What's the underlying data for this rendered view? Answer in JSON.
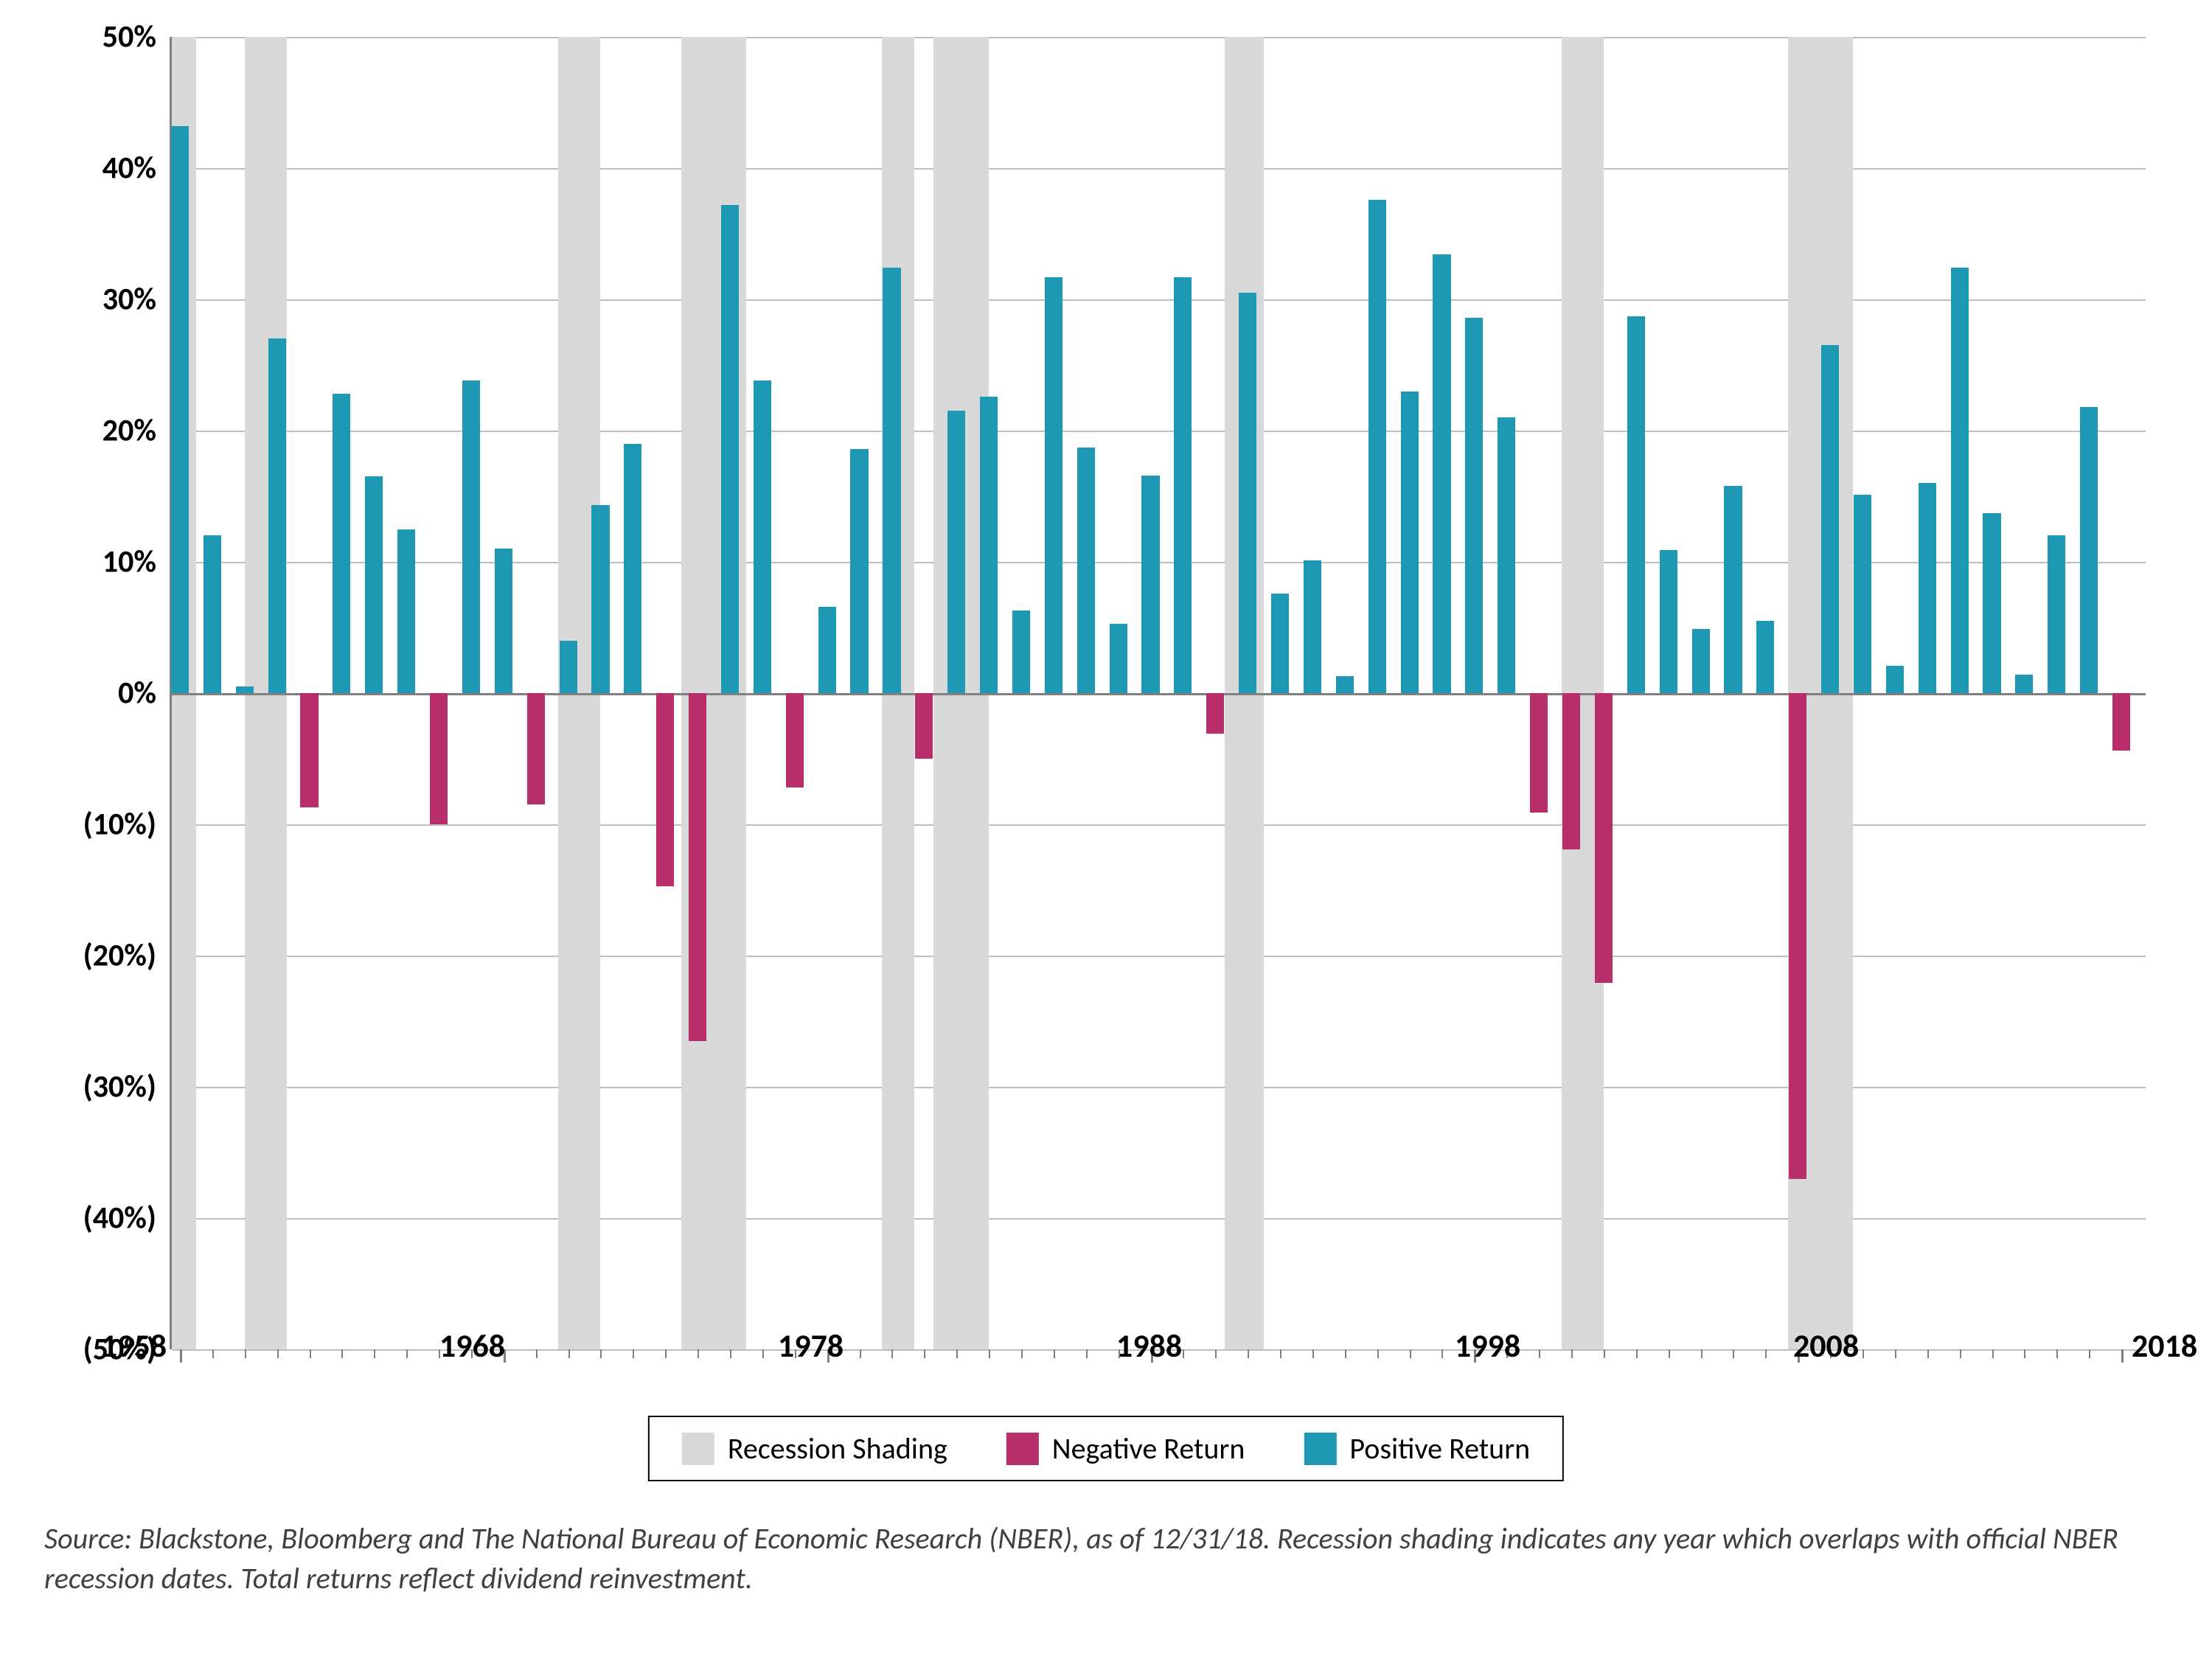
{
  "chart": {
    "type": "bar",
    "ylim": [
      -50,
      50
    ],
    "ytick_step": 10,
    "y_ticks": [
      {
        "v": 50,
        "label": "50%"
      },
      {
        "v": 40,
        "label": "40%"
      },
      {
        "v": 30,
        "label": "30%"
      },
      {
        "v": 20,
        "label": "20%"
      },
      {
        "v": 10,
        "label": "10%"
      },
      {
        "v": 0,
        "label": "0%"
      },
      {
        "v": -10,
        "label": "(10%)"
      },
      {
        "v": -20,
        "label": "(20%)"
      },
      {
        "v": -30,
        "label": "(30%)"
      },
      {
        "v": -40,
        "label": "(40%)"
      },
      {
        "v": -50,
        "label": "(50%)"
      }
    ],
    "xlim": [
      1958,
      2018
    ],
    "x_ticks": [
      1958,
      1968,
      1978,
      1988,
      1998,
      2008,
      2018
    ],
    "bar_width_years": 0.55,
    "grid_color": "#bfbfbf",
    "axis_color": "#808080",
    "background_color": "#ffffff",
    "colors": {
      "recession": "#d9d9d9",
      "negative": "#b82e6b",
      "positive": "#1f99b3"
    },
    "recession_periods": [
      [
        1957.7,
        1958.5
      ],
      [
        1960.0,
        1961.3
      ],
      [
        1969.7,
        1971.0
      ],
      [
        1973.5,
        1975.5
      ],
      [
        1979.7,
        1980.7
      ],
      [
        1981.3,
        1983.0
      ],
      [
        1990.3,
        1991.5
      ],
      [
        2000.7,
        2002.0
      ],
      [
        2007.7,
        2009.7
      ]
    ],
    "data": [
      {
        "year": 1958,
        "value": 43.2
      },
      {
        "year": 1959,
        "value": 12.0
      },
      {
        "year": 1960,
        "value": 0.5
      },
      {
        "year": 1961,
        "value": 27.0
      },
      {
        "year": 1962,
        "value": -8.7
      },
      {
        "year": 1963,
        "value": 22.8
      },
      {
        "year": 1964,
        "value": 16.5
      },
      {
        "year": 1965,
        "value": 12.5
      },
      {
        "year": 1966,
        "value": -10.0
      },
      {
        "year": 1967,
        "value": 23.8
      },
      {
        "year": 1968,
        "value": 11.0
      },
      {
        "year": 1969,
        "value": -8.5
      },
      {
        "year": 1970,
        "value": 4.0
      },
      {
        "year": 1971,
        "value": 14.3
      },
      {
        "year": 1972,
        "value": 19.0
      },
      {
        "year": 1973,
        "value": -14.7
      },
      {
        "year": 1974,
        "value": -26.5
      },
      {
        "year": 1975,
        "value": 37.2
      },
      {
        "year": 1976,
        "value": 23.8
      },
      {
        "year": 1977,
        "value": -7.2
      },
      {
        "year": 1978,
        "value": 6.6
      },
      {
        "year": 1979,
        "value": 18.6
      },
      {
        "year": 1980,
        "value": 32.4
      },
      {
        "year": 1981,
        "value": -5.0
      },
      {
        "year": 1982,
        "value": 21.5
      },
      {
        "year": 1983,
        "value": 22.6
      },
      {
        "year": 1984,
        "value": 6.3
      },
      {
        "year": 1985,
        "value": 31.7
      },
      {
        "year": 1986,
        "value": 18.7
      },
      {
        "year": 1987,
        "value": 5.3
      },
      {
        "year": 1988,
        "value": 16.6
      },
      {
        "year": 1989,
        "value": 31.7
      },
      {
        "year": 1990,
        "value": -3.1
      },
      {
        "year": 1991,
        "value": 30.5
      },
      {
        "year": 1992,
        "value": 7.6
      },
      {
        "year": 1993,
        "value": 10.1
      },
      {
        "year": 1994,
        "value": 1.3
      },
      {
        "year": 1995,
        "value": 37.6
      },
      {
        "year": 1996,
        "value": 23.0
      },
      {
        "year": 1997,
        "value": 33.4
      },
      {
        "year": 1998,
        "value": 28.6
      },
      {
        "year": 1999,
        "value": 21.0
      },
      {
        "year": 2000,
        "value": -9.1
      },
      {
        "year": 2001,
        "value": -11.9
      },
      {
        "year": 2002,
        "value": -22.1
      },
      {
        "year": 2003,
        "value": 28.7
      },
      {
        "year": 2004,
        "value": 10.9
      },
      {
        "year": 2005,
        "value": 4.9
      },
      {
        "year": 2006,
        "value": 15.8
      },
      {
        "year": 2007,
        "value": 5.5
      },
      {
        "year": 2008,
        "value": -37.0
      },
      {
        "year": 2009,
        "value": 26.5
      },
      {
        "year": 2010,
        "value": 15.1
      },
      {
        "year": 2011,
        "value": 2.1
      },
      {
        "year": 2012,
        "value": 16.0
      },
      {
        "year": 2013,
        "value": 32.4
      },
      {
        "year": 2014,
        "value": 13.7
      },
      {
        "year": 2015,
        "value": 1.4
      },
      {
        "year": 2016,
        "value": 12.0
      },
      {
        "year": 2017,
        "value": 21.8
      },
      {
        "year": 2018,
        "value": -4.4
      }
    ],
    "legend": {
      "recession": "Recession Shading",
      "negative": "Negative Return",
      "positive": "Positive Return"
    }
  },
  "source_text": "Source: Blackstone, Bloomberg and The National Bureau of Economic Research (NBER), as of 12/31/18. Recession shading indicates any year which overlaps with official NBER recession dates. Total returns reflect dividend reinvestment."
}
